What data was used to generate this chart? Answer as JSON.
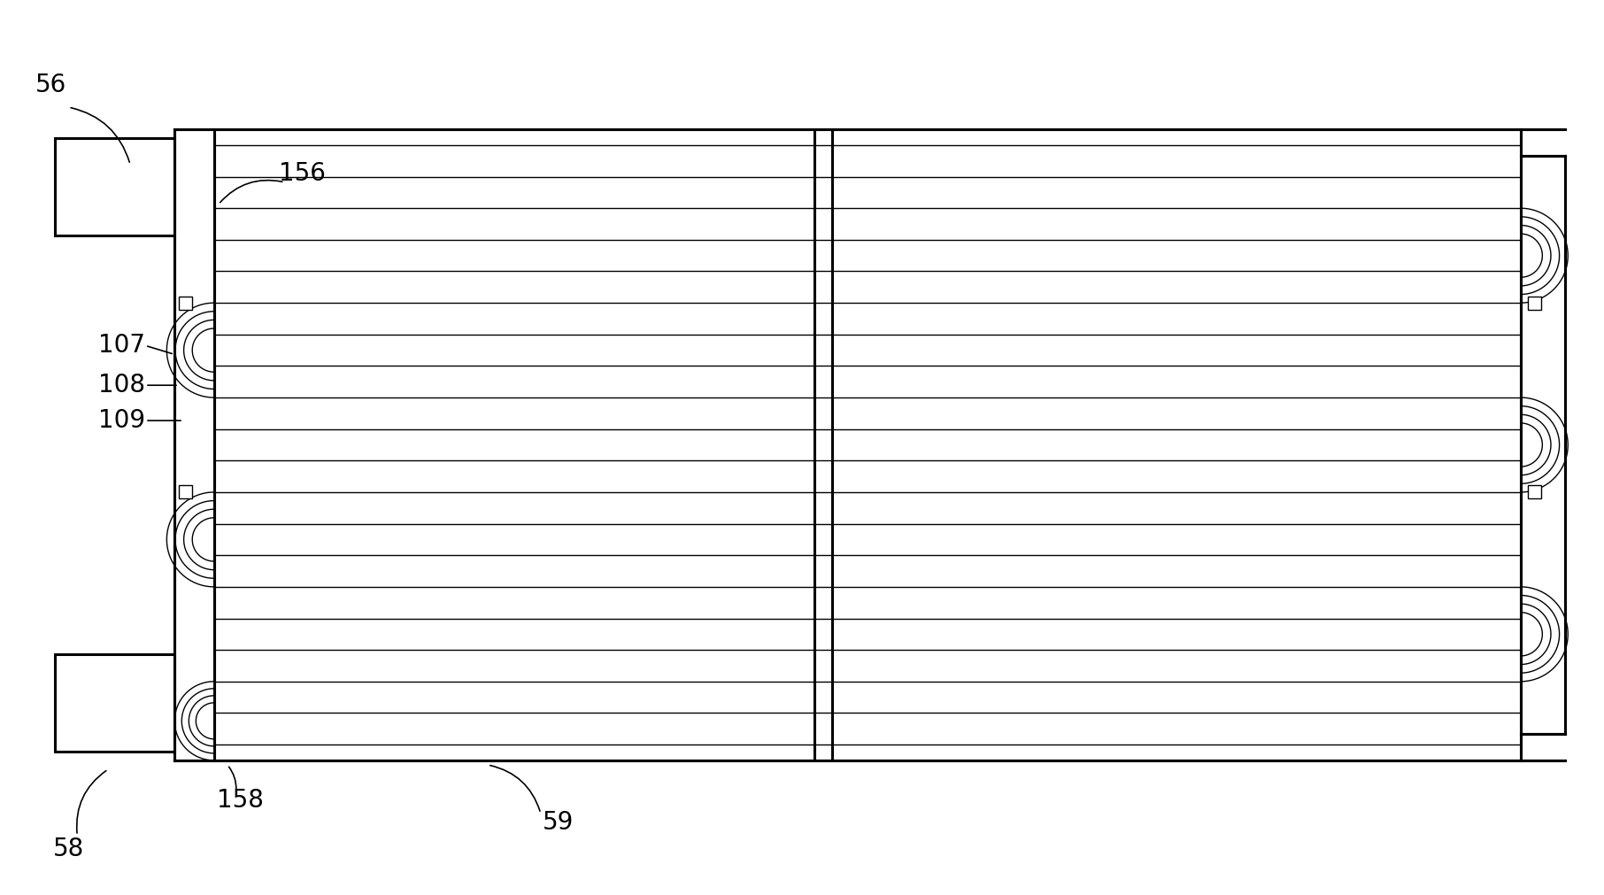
{
  "bg_color": "#ffffff",
  "line_color": "#000000",
  "fig_width": 18.12,
  "fig_height": 10.11,
  "dpi": 100,
  "lw_tube": 1.0,
  "lw_heavy": 2.2,
  "lw_med": 1.5
}
